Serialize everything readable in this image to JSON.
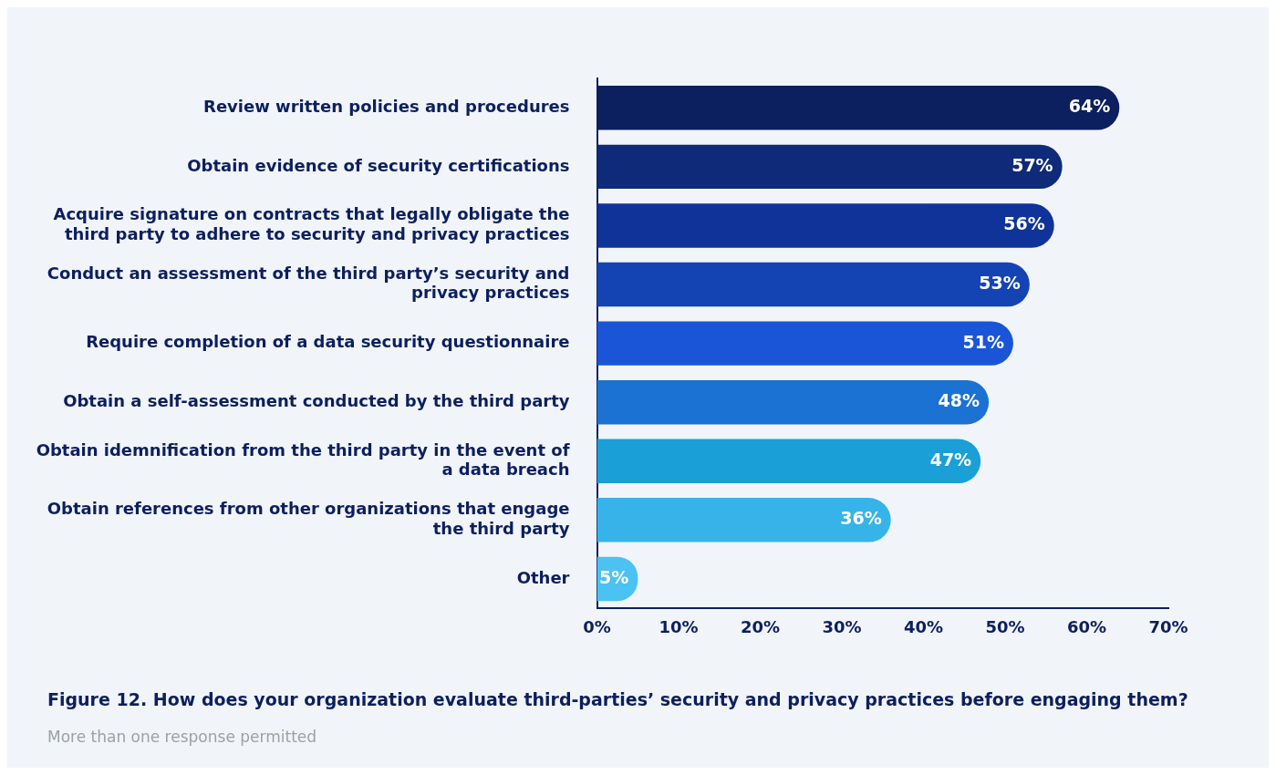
{
  "chart_data": {
    "type": "bar",
    "orientation": "horizontal",
    "title": "Figure 12. How does your organization evaluate third-parties’ security and privacy practices before engaging them?",
    "subtitle": "More than one response permitted",
    "categories": [
      "Review written policies and procedures",
      "Obtain evidence of security certifications",
      "Acquire signature on contracts that legally obligate the\nthird party to adhere to security and privacy practices",
      "Conduct an assessment of the third party’s security and\nprivacy practices",
      "Require completion of a data security questionnaire",
      "Obtain a self-assessment conducted by the third party",
      "Obtain idemnification from the third party in the event of\na data breach",
      "Obtain references from other organizations that engage\nthe third party",
      "Other"
    ],
    "values": [
      64,
      57,
      56,
      53,
      51,
      48,
      47,
      36,
      5
    ],
    "colors": [
      "#0c1f5e",
      "#0f2a78",
      "#10339a",
      "#1443b3",
      "#1a55d8",
      "#1c72d2",
      "#1a9fd6",
      "#36b3e8",
      "#4bc2f2"
    ],
    "value_labels": [
      "64%",
      "57%",
      "56%",
      "53%",
      "51%",
      "48%",
      "47%",
      "36%",
      "5%"
    ],
    "xlim": [
      0,
      70
    ],
    "xticks": [
      {
        "value": 0,
        "label": "0%"
      },
      {
        "value": 10,
        "label": "10%"
      },
      {
        "value": 20,
        "label": "20%"
      },
      {
        "value": 30,
        "label": "30%"
      },
      {
        "value": 40,
        "label": "40%"
      },
      {
        "value": 50,
        "label": "50%"
      },
      {
        "value": 60,
        "label": "60%"
      },
      {
        "value": 70,
        "label": "70%"
      }
    ],
    "grid": false,
    "legend": false
  }
}
